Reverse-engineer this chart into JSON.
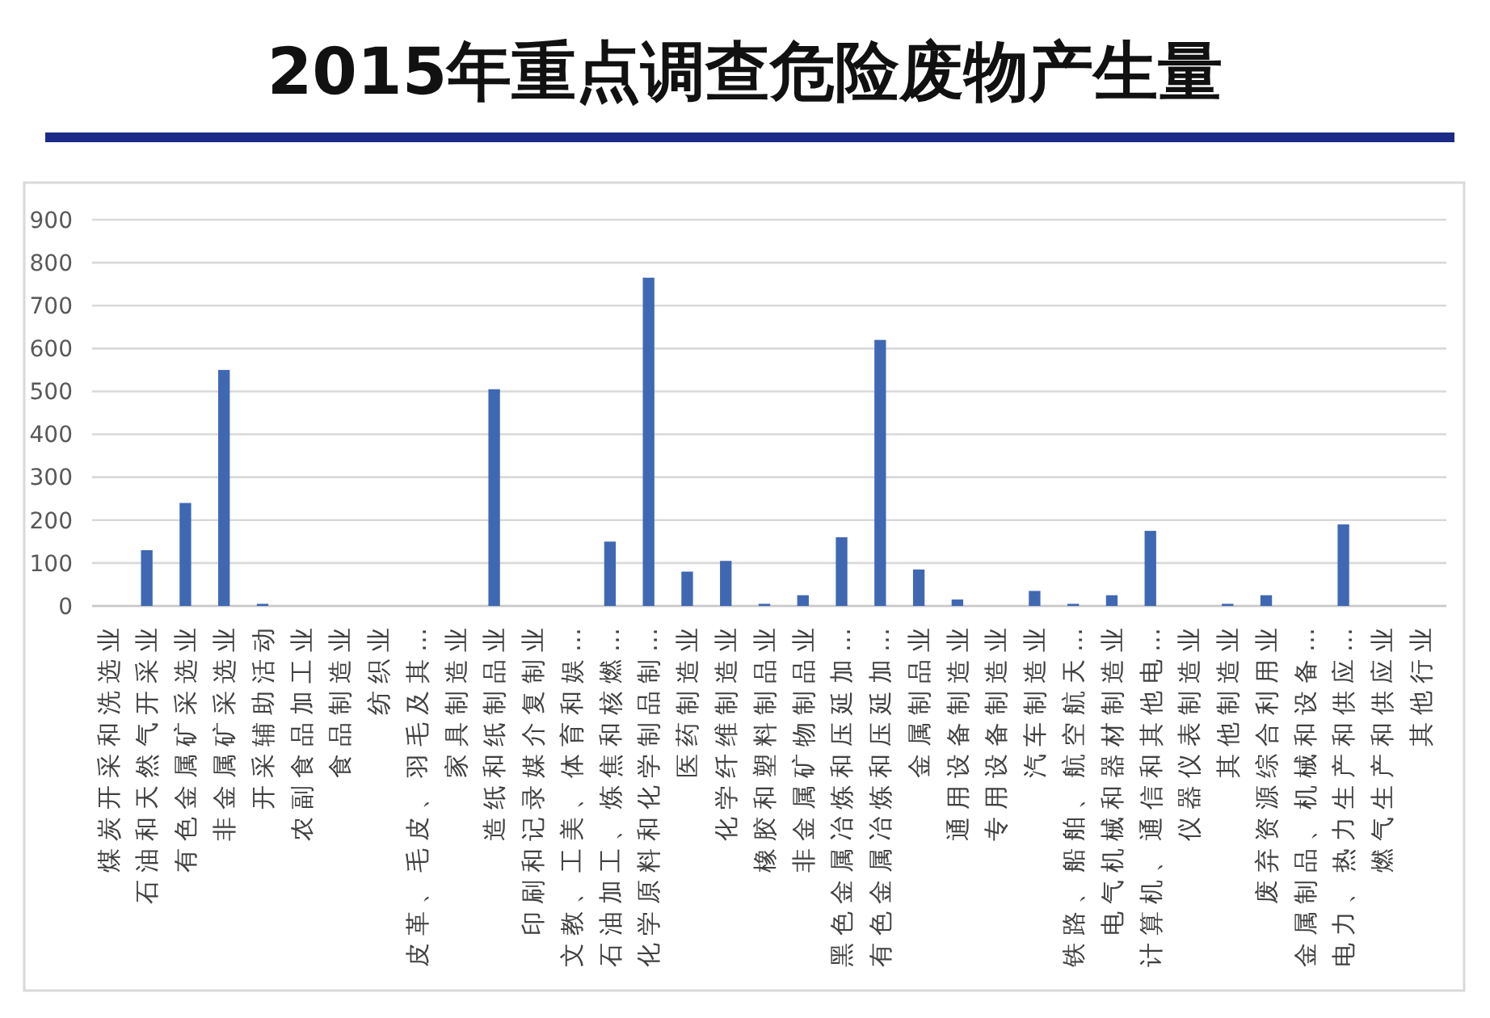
{
  "chart_data": {
    "type": "bar",
    "title": "2015年重点调查危险废物产生量",
    "categories": [
      "煤炭开采和洗选业",
      "石油和天然气开采业",
      "有色金属矿采选业",
      "非金属矿采选业",
      "开采辅助活动",
      "农副食品加工业",
      "食品制造业",
      "纺织业",
      "皮革、毛皮、羽毛及其…",
      "家具制造业",
      "造纸和纸制品业",
      "印刷和记录媒介复制业",
      "文教、工美、体育和娱…",
      "石油加工、炼焦和核燃…",
      "化学原料和化学制品制…",
      "医药制造业",
      "化学纤维制造业",
      "橡胶和塑料制品业",
      "非金属矿物制品业",
      "黑色金属冶炼和压延加…",
      "有色金属冶炼和压延加…",
      "金属制品业",
      "通用设备制造业",
      "专用设备制造业",
      "汽车制造业",
      "铁路、船舶、航空航天…",
      "电气机械和器材制造业",
      "计算机、通信和其他电…",
      "仪器仪表制造业",
      "其他制造业",
      "废弃资源综合利用业",
      "金属制品、机械和设备…",
      "电力、热力生产和供应…",
      "燃气生产和供应业",
      "其他行业"
    ],
    "values": [
      0,
      130,
      240,
      550,
      5,
      0,
      0,
      0,
      0,
      0,
      505,
      0,
      0,
      150,
      765,
      80,
      105,
      5,
      25,
      160,
      620,
      85,
      15,
      0,
      35,
      5,
      25,
      175,
      0,
      5,
      25,
      0,
      190,
      0,
      0
    ],
    "color": "#4068b2",
    "ylim": [
      0,
      900
    ],
    "yticks": [
      0,
      100,
      200,
      300,
      400,
      500,
      600,
      700,
      800,
      900
    ],
    "grid": "y"
  }
}
